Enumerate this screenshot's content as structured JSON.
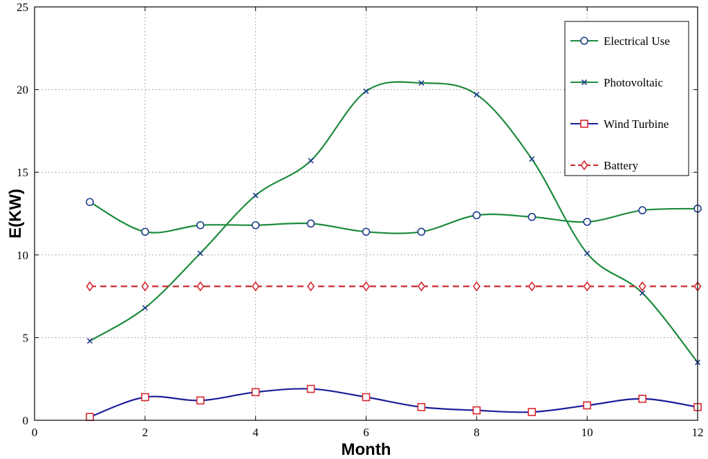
{
  "chart_data": {
    "type": "line",
    "title": "",
    "xlabel": "Month",
    "ylabel": "E(KW)",
    "xlim": [
      0,
      12
    ],
    "ylim": [
      0,
      25
    ],
    "xticks": [
      0,
      2,
      4,
      6,
      8,
      10,
      12
    ],
    "yticks": [
      0,
      5,
      10,
      15,
      20,
      25
    ],
    "grid": true,
    "legend_position": "top-right",
    "x": [
      1,
      2,
      3,
      4,
      5,
      6,
      7,
      8,
      9,
      10,
      11,
      12
    ],
    "series": [
      {
        "name": "Electrical Use",
        "values": [
          13.2,
          11.4,
          11.8,
          11.8,
          11.9,
          11.4,
          11.4,
          12.4,
          12.3,
          12.0,
          12.7,
          12.8
        ],
        "color": "#1a8a3a",
        "marker": "circle",
        "marker_color": "#1c3a8c",
        "dash": "solid"
      },
      {
        "name": "Photovoltaic",
        "values": [
          4.8,
          6.8,
          10.1,
          13.6,
          15.7,
          19.9,
          20.4,
          19.7,
          15.8,
          10.1,
          7.7,
          3.5
        ],
        "color": "#1a8a3a",
        "marker": "x",
        "marker_color": "#1c3a8c",
        "dash": "solid"
      },
      {
        "name": "Wind Turbine",
        "values": [
          0.2,
          1.4,
          1.2,
          1.7,
          1.9,
          1.4,
          0.8,
          0.6,
          0.5,
          0.9,
          1.3,
          0.8
        ],
        "color": "#1c1c9a",
        "marker": "square",
        "marker_color": "#d8262e",
        "dash": "solid"
      },
      {
        "name": "Battery",
        "values": [
          8.1,
          8.1,
          8.1,
          8.1,
          8.1,
          8.1,
          8.1,
          8.1,
          8.1,
          8.1,
          8.1,
          8.1
        ],
        "color": "#c8282e",
        "marker": "diamond",
        "marker_color": "#d8262e",
        "dash": "dashed"
      }
    ]
  }
}
